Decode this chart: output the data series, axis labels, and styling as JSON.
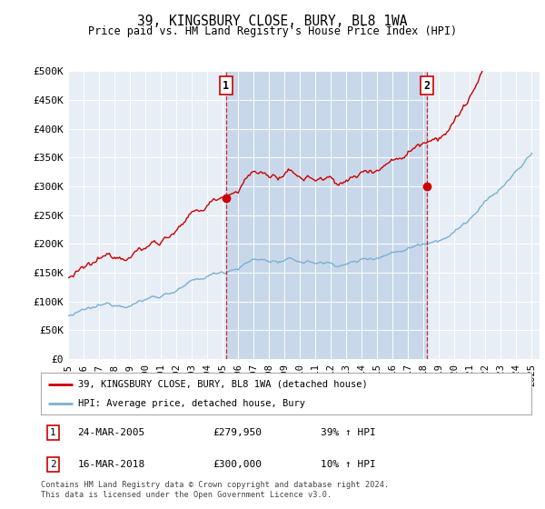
{
  "title": "39, KINGSBURY CLOSE, BURY, BL8 1WA",
  "subtitle": "Price paid vs. HM Land Registry's House Price Index (HPI)",
  "plot_bg_color": "#e8eef5",
  "shade_color": "#c8d8ea",
  "ylim": [
    0,
    500000
  ],
  "yticks": [
    0,
    50000,
    100000,
    150000,
    200000,
    250000,
    300000,
    350000,
    400000,
    450000,
    500000
  ],
  "ytick_labels": [
    "£0",
    "£50K",
    "£100K",
    "£150K",
    "£200K",
    "£250K",
    "£300K",
    "£350K",
    "£400K",
    "£450K",
    "£500K"
  ],
  "hpi_color": "#7ab0d4",
  "price_color": "#cc0000",
  "t1": 2005.22,
  "t2": 2018.21,
  "price1": 279950,
  "price2": 300000,
  "legend_property": "39, KINGSBURY CLOSE, BURY, BL8 1WA (detached house)",
  "legend_hpi": "HPI: Average price, detached house, Bury",
  "table_row1": [
    "1",
    "24-MAR-2005",
    "£279,950",
    "39% ↑ HPI"
  ],
  "table_row2": [
    "2",
    "16-MAR-2018",
    "£300,000",
    "10% ↑ HPI"
  ],
  "footer": "Contains HM Land Registry data © Crown copyright and database right 2024.\nThis data is licensed under the Open Government Licence v3.0."
}
